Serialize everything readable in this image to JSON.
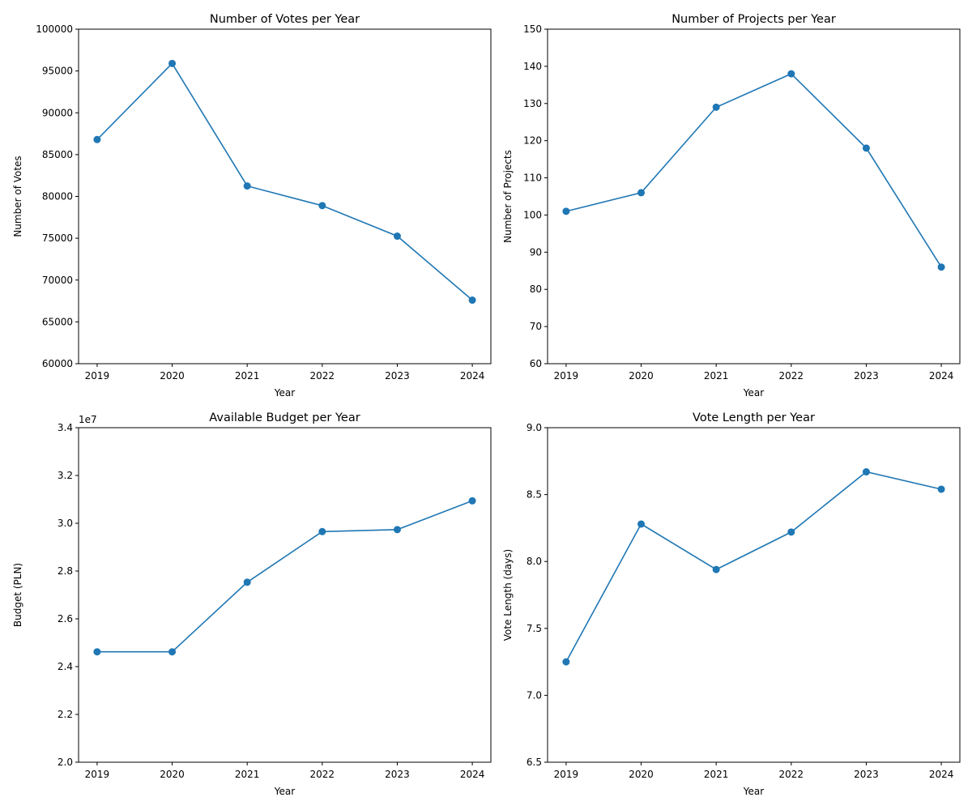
{
  "colors": {
    "series": "#1f77b4",
    "axis": "#000000",
    "background": "#ffffff"
  },
  "chart_data": [
    {
      "type": "line",
      "title": "Number of Votes per Year",
      "xlabel": "Year",
      "ylabel": "Number of Votes",
      "x": [
        "2019",
        "2020",
        "2021",
        "2022",
        "2023",
        "2024"
      ],
      "values": [
        86800,
        95900,
        81250,
        78900,
        75250,
        67600
      ],
      "ylim": [
        60000,
        100000
      ],
      "yticks": [
        "60000",
        "65000",
        "70000",
        "75000",
        "80000",
        "85000",
        "90000",
        "95000",
        "100000"
      ],
      "offset_text": "",
      "grid": false,
      "marker": "circle"
    },
    {
      "type": "line",
      "title": "Number of Projects per Year",
      "xlabel": "Year",
      "ylabel": "Number of Projects",
      "x": [
        "2019",
        "2020",
        "2021",
        "2022",
        "2023",
        "2024"
      ],
      "values": [
        101,
        106,
        129,
        138,
        118,
        86
      ],
      "ylim": [
        60,
        150
      ],
      "yticks": [
        "60",
        "70",
        "80",
        "90",
        "100",
        "110",
        "120",
        "130",
        "140",
        "150"
      ],
      "offset_text": "",
      "grid": false,
      "marker": "circle"
    },
    {
      "type": "line",
      "title": "Available Budget per Year",
      "xlabel": "Year",
      "ylabel": "Budget (PLN)",
      "x": [
        "2019",
        "2020",
        "2021",
        "2022",
        "2023",
        "2024"
      ],
      "values": [
        24950000,
        24950000,
        28070000,
        30340000,
        30430000,
        31720000
      ],
      "ylim": [
        20000000,
        35000000
      ],
      "yticks": [
        "2.0",
        "2.2",
        "2.4",
        "2.6",
        "2.8",
        "3.0",
        "3.2",
        "3.4"
      ],
      "offset_text": "1e7",
      "grid": false,
      "marker": "circle"
    },
    {
      "type": "line",
      "title": "Vote Length per Year",
      "xlabel": "Year",
      "ylabel": "Vote Length (days)",
      "x": [
        "2019",
        "2020",
        "2021",
        "2022",
        "2023",
        "2024"
      ],
      "values": [
        7.25,
        8.28,
        7.94,
        8.22,
        8.67,
        8.54
      ],
      "ylim": [
        6.5,
        9.0
      ],
      "yticks": [
        "6.5",
        "7.0",
        "7.5",
        "8.0",
        "8.5",
        "9.0"
      ],
      "offset_text": "",
      "grid": false,
      "marker": "circle"
    }
  ]
}
